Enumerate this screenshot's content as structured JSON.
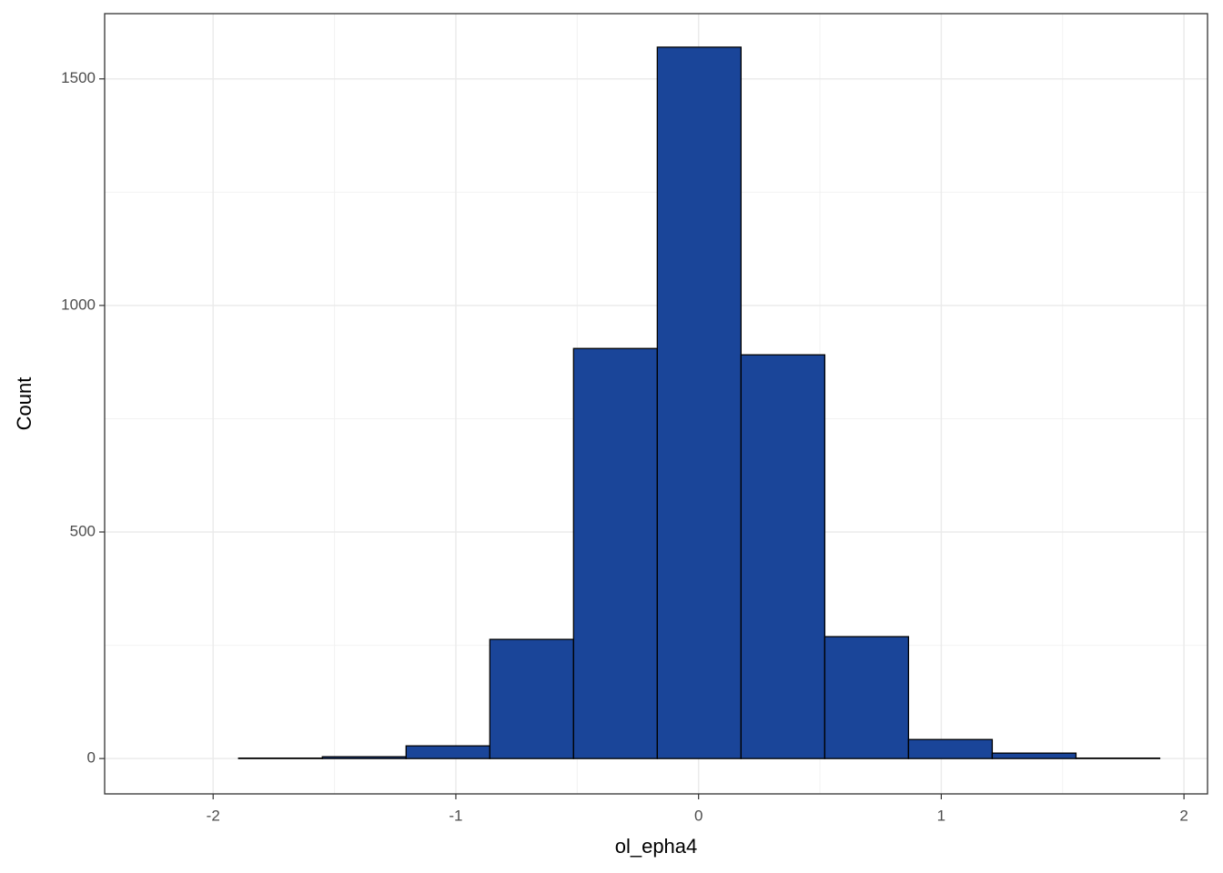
{
  "chart_data": {
    "type": "histogram",
    "x_label": "ol_epha4",
    "y_label": "Count",
    "bins": [
      -2.24,
      -1.895,
      -1.55,
      -1.205,
      -0.86,
      -0.515,
      -0.17,
      0.175,
      0.52,
      0.865,
      1.21,
      1.555,
      1.9
    ],
    "values": [
      0,
      1,
      4,
      28,
      263,
      905,
      1570,
      891,
      269,
      42,
      12,
      1
    ],
    "color": "#1a4599",
    "xlim": [
      -2.447,
      2.097
    ],
    "ylim": [
      -78,
      1644
    ],
    "xticks": [
      -2,
      -1,
      0,
      1,
      2
    ],
    "yticks": [
      0,
      500,
      1000,
      1500
    ],
    "grid": true
  }
}
